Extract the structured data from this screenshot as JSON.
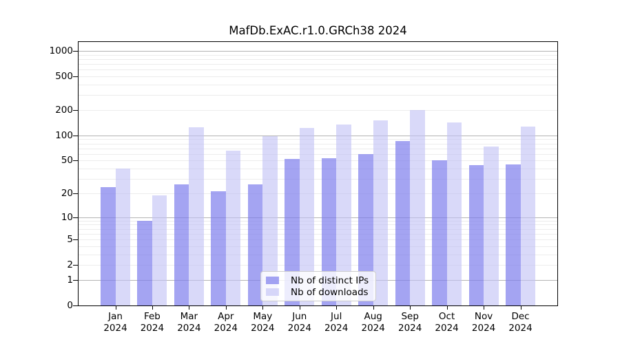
{
  "chart_data": {
    "type": "bar",
    "title": "MafDb.ExAC.r1.0.GRCh38 2024",
    "months": [
      "Jan",
      "Feb",
      "Mar",
      "Apr",
      "May",
      "Jun",
      "Jul",
      "Aug",
      "Sep",
      "Oct",
      "Nov",
      "Dec"
    ],
    "year": "2024",
    "series": [
      {
        "name": "Nb of distinct IPs",
        "color": "#7e7eec",
        "alpha": 0.7,
        "values": [
          24,
          9,
          26,
          21,
          26,
          52,
          53,
          60,
          86,
          50,
          44,
          45
        ]
      },
      {
        "name": "Nb of downloads",
        "color": "#c0c0f5",
        "alpha": 0.6,
        "values": [
          40,
          19,
          126,
          66,
          97,
          122,
          134,
          150,
          200,
          143,
          74,
          128
        ]
      }
    ],
    "y_axis": {
      "scale": "log10(value+1)",
      "tick_values": [
        0,
        1,
        2,
        5,
        10,
        20,
        50,
        100,
        200,
        500,
        1000
      ],
      "top_value": 1274,
      "major_gridlines": [
        1,
        10,
        100,
        1000
      ],
      "minor_gridlines": [
        2,
        3,
        4,
        5,
        6,
        7,
        8,
        9,
        20,
        30,
        40,
        50,
        60,
        70,
        80,
        90,
        200,
        300,
        400,
        500,
        600,
        700,
        800,
        900
      ]
    },
    "colors": {
      "bar_ips": "#a5a5f2",
      "bar_downloads": "#d9d9f9",
      "grid_minor": "#ececec",
      "grid_major": "#b3b3b3",
      "axis": "#000000",
      "legend_border": "#cccccc"
    },
    "legend_position": "lower center",
    "grid": true
  }
}
